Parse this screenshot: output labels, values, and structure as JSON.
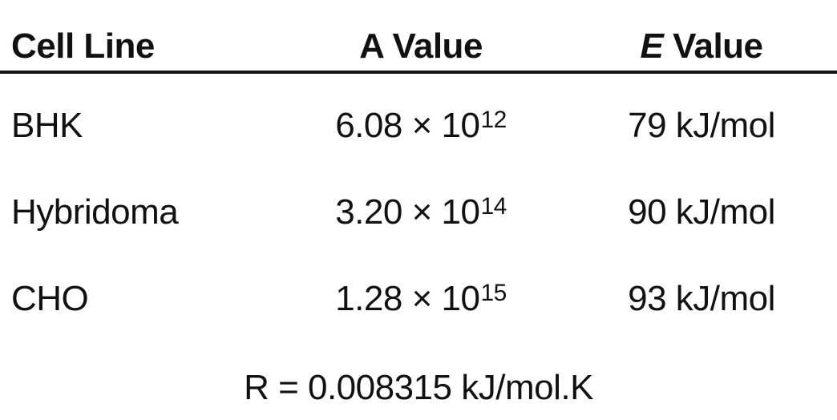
{
  "table": {
    "headers": {
      "cell_line": "Cell Line",
      "a_value": "A Value",
      "e_symbol": "E",
      "e_value_word": "Value"
    },
    "rows": [
      {
        "cell_line": "BHK",
        "a_mantissa": "6.08",
        "a_times": "× 10",
        "a_exponent": "12",
        "e_value": "79 kJ/mol"
      },
      {
        "cell_line": "Hybridoma",
        "a_mantissa": "3.20",
        "a_times": "× 10",
        "a_exponent": "14",
        "e_value": "90 kJ/mol"
      },
      {
        "cell_line": "CHO",
        "a_mantissa": "1.28",
        "a_times": "× 10",
        "a_exponent": "15",
        "e_value": "93 kJ/mol"
      }
    ],
    "footnote": "R = 0.008315 kJ/mol.K"
  }
}
